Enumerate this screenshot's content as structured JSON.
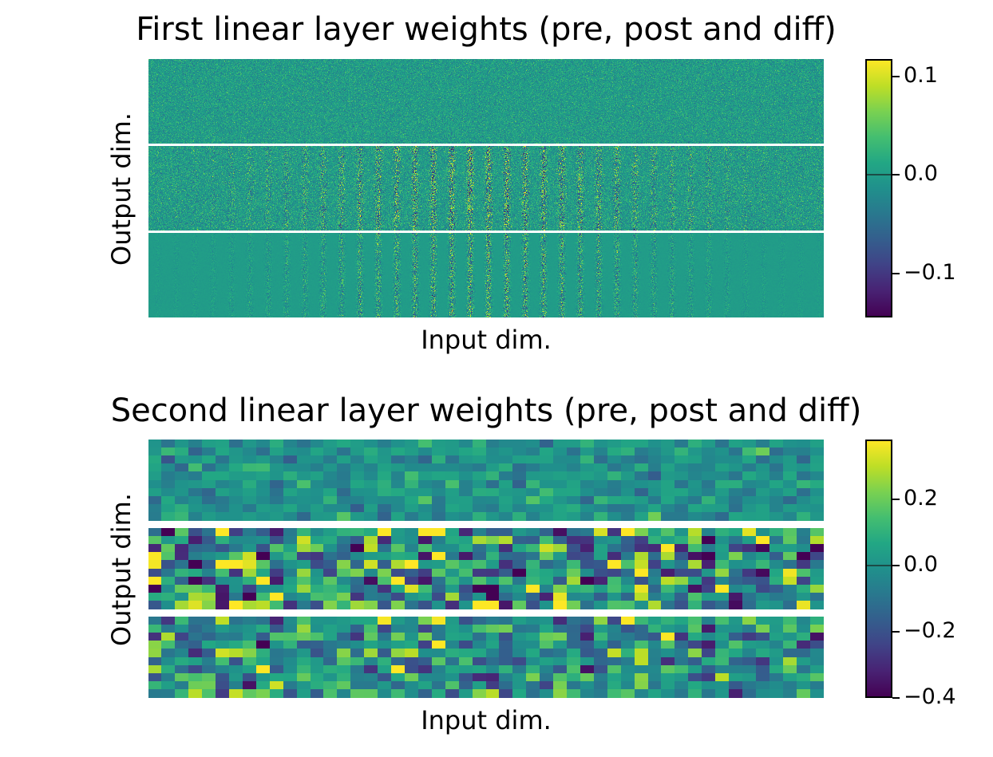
{
  "chart_data": [
    {
      "type": "heatmap",
      "title": "First linear layer weights (pre, post and diff)",
      "xlabel": "Input dim.",
      "ylabel": "Output dim.",
      "panels": [
        "pre",
        "post",
        "diff"
      ],
      "colormap": "viridis",
      "colorbar": {
        "vmin": -0.145,
        "vmax": 0.118,
        "ticks": [
          -0.1,
          0.0,
          0.1
        ],
        "tick_labels": [
          "−0.1",
          "0.0",
          "0.1"
        ]
      }
    },
    {
      "type": "heatmap",
      "title": "Second linear layer weights (pre, post and diff)",
      "xlabel": "Input dim.",
      "ylabel": "Output dim.",
      "panels": [
        "pre",
        "post",
        "diff"
      ],
      "colormap": "viridis",
      "colorbar": {
        "vmin": -0.4,
        "vmax": 0.38,
        "ticks": [
          -0.4,
          -0.2,
          0.0,
          0.2
        ],
        "tick_labels": [
          "−0.4",
          "−0.2",
          "0.0",
          "0.2"
        ]
      }
    }
  ]
}
